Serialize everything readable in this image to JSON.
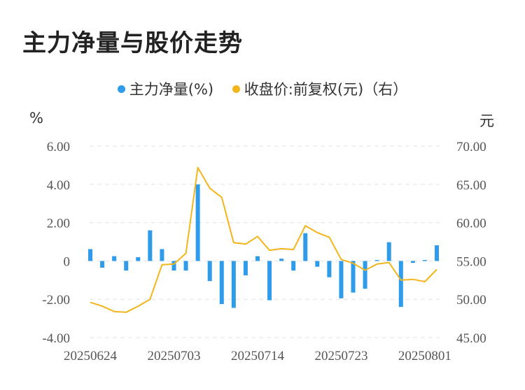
{
  "title": "主力净量与股价走势",
  "legend": {
    "bar_label": "主力净量(%)",
    "line_label": "收盘价:前复权(元)（右）"
  },
  "units": {
    "left": "%",
    "right": "元"
  },
  "colors": {
    "bar": "#2e9cea",
    "line": "#f3b51b",
    "grid": "#e3e3e3",
    "text": "#555555"
  },
  "chart_data": {
    "type": "bar+line",
    "x_tick_labels": [
      "20250624",
      "20250703",
      "20250714",
      "20250723",
      "20250801"
    ],
    "x_tick_indices": [
      0,
      7,
      14,
      21,
      28
    ],
    "y_left": {
      "ticks": [
        "6.00",
        "4.00",
        "2.00",
        "0",
        "-2.00",
        "-4.00"
      ],
      "range": [
        -4,
        6
      ]
    },
    "y_right": {
      "ticks": [
        "70.00",
        "65.00",
        "60.00",
        "55.00",
        "50.00",
        "45.00"
      ],
      "range": [
        45,
        70
      ]
    },
    "series": [
      {
        "name": "主力净量(%)",
        "type": "bar",
        "values": [
          0.62,
          -0.35,
          0.25,
          -0.5,
          0.2,
          1.6,
          0.62,
          -0.5,
          -0.5,
          4.0,
          -1.05,
          -2.25,
          -2.45,
          -0.75,
          0.25,
          -2.05,
          0.12,
          -0.5,
          1.45,
          -0.3,
          -0.85,
          -1.95,
          -1.65,
          -1.45,
          0.05,
          0.98,
          -2.4,
          -0.1,
          0.05,
          0.82
        ]
      },
      {
        "name": "收盘价:前复权(元)（右）",
        "type": "line",
        "values": [
          49.6,
          49.1,
          48.4,
          48.3,
          49.1,
          50.0,
          54.5,
          54.6,
          56.0,
          67.2,
          64.5,
          63.3,
          57.4,
          57.2,
          58.2,
          56.4,
          56.6,
          56.5,
          59.6,
          58.7,
          58.1,
          55.2,
          54.7,
          53.8,
          54.6,
          54.8,
          52.5,
          52.6,
          52.3,
          53.9
        ]
      }
    ]
  }
}
